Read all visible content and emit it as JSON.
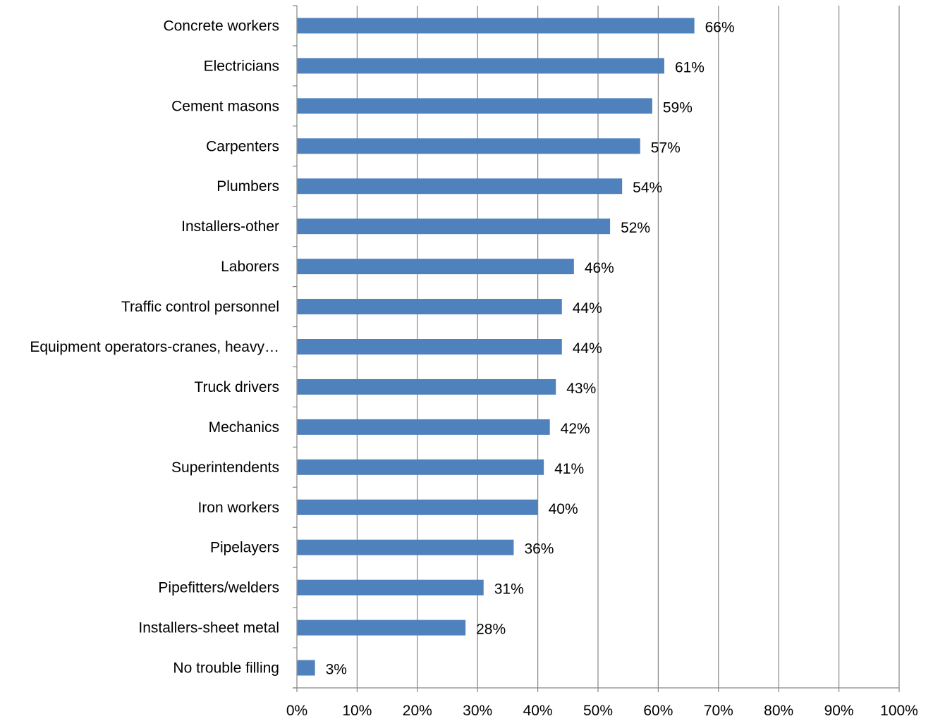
{
  "chart_data": {
    "type": "bar",
    "orientation": "horizontal",
    "categories": [
      "Concrete workers",
      "Electricians",
      "Cement masons",
      "Carpenters",
      "Plumbers",
      "Installers-other",
      "Laborers",
      "Traffic control personnel",
      "Equipment operators-cranes, heavy…",
      "Truck drivers",
      "Mechanics",
      "Superintendents",
      "Iron workers",
      "Pipelayers",
      "Pipefitters/welders",
      "Installers-sheet metal",
      "No trouble filling"
    ],
    "values": [
      66,
      61,
      59,
      57,
      54,
      52,
      46,
      44,
      44,
      43,
      42,
      41,
      40,
      36,
      31,
      28,
      3
    ],
    "data_labels": [
      "66%",
      "61%",
      "59%",
      "57%",
      "54%",
      "52%",
      "46%",
      "44%",
      "44%",
      "43%",
      "42%",
      "41%",
      "40%",
      "36%",
      "31%",
      "28%",
      "3%"
    ],
    "x_ticks": [
      "0%",
      "10%",
      "20%",
      "30%",
      "40%",
      "50%",
      "60%",
      "70%",
      "80%",
      "90%",
      "100%"
    ],
    "xlim": [
      0,
      100
    ],
    "grid": true,
    "legend": "none",
    "title": "",
    "xlabel": "",
    "ylabel": "",
    "bar_color": "#4F81BD"
  }
}
